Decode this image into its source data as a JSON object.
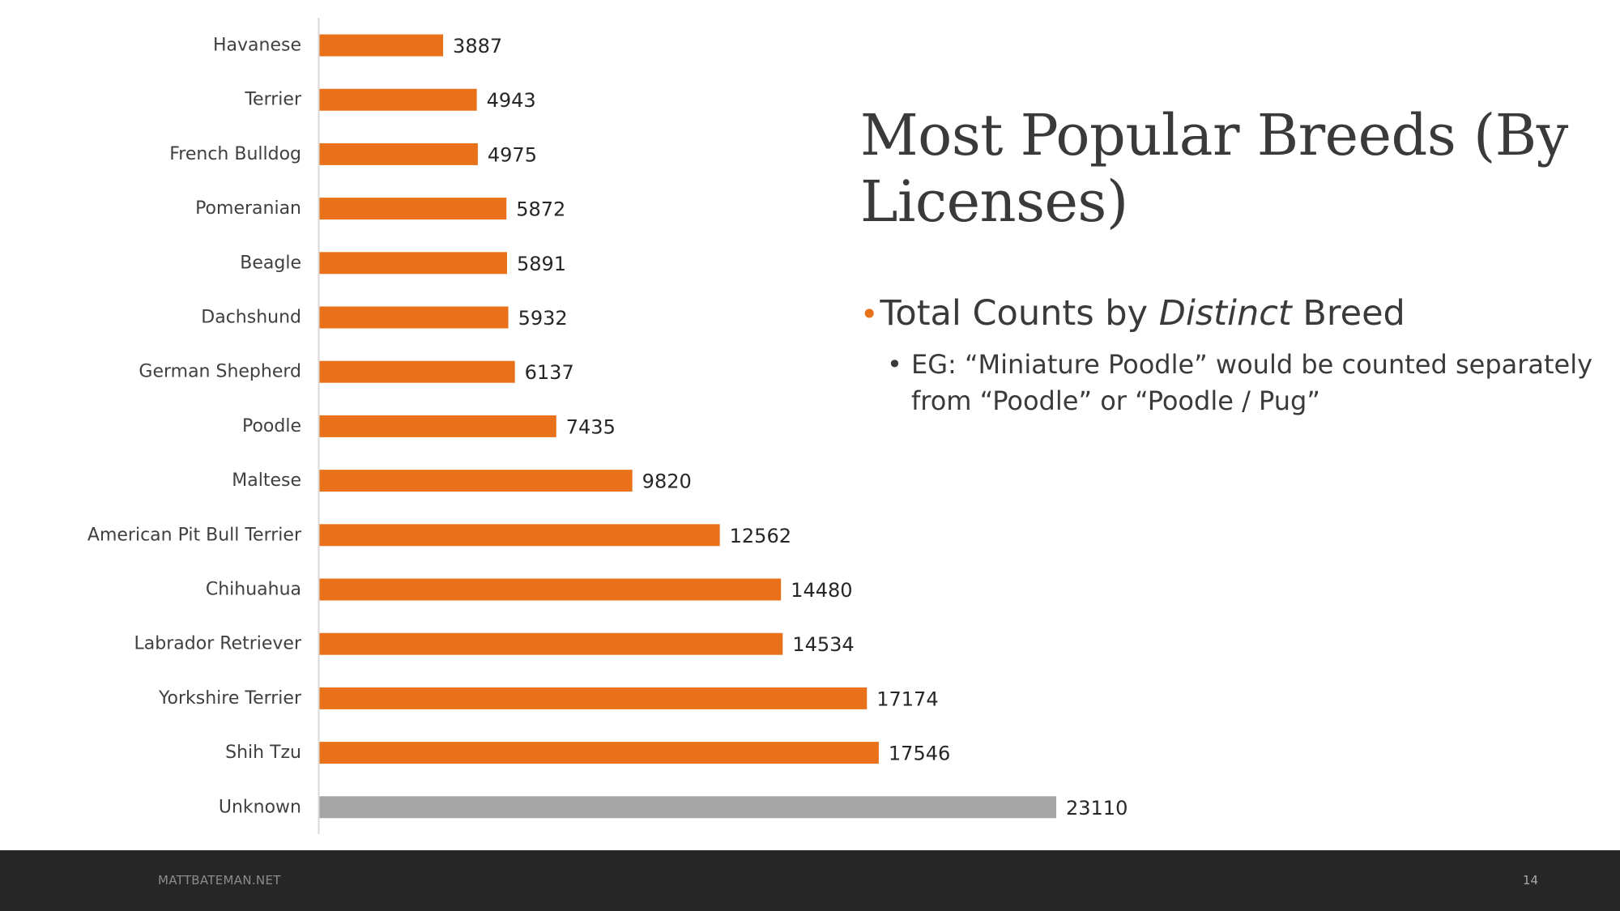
{
  "slide": {
    "title": "Most Popular Breeds (By Licenses)",
    "bullet": {
      "dot": "•",
      "text_before": "Total Counts by ",
      "text_emphasis": "Distinct",
      "text_after": " Breed"
    },
    "sub_bullet": {
      "dot": "•",
      "text": "EG: “Miniature Poodle” would be counted separately from “Poodle” or “Poodle / Pug”"
    },
    "footer": {
      "site": "MATTBATEMAN.NET",
      "page_number": "14"
    }
  },
  "chart_data": {
    "type": "bar",
    "orientation": "horizontal",
    "title": "",
    "xlabel": "",
    "ylabel": "",
    "xlim": [
      0,
      23110
    ],
    "grid": false,
    "legend": "none",
    "categories": [
      "Havanese",
      "Terrier",
      "French Bulldog",
      "Pomeranian",
      "Beagle",
      "Dachshund",
      "German Shepherd",
      "Poodle",
      "Maltese",
      "American Pit Bull Terrier",
      "Chihuahua",
      "Labrador Retriever",
      "Yorkshire Terrier",
      "Shih Tzu",
      "Unknown"
    ],
    "values": [
      3887,
      4943,
      4975,
      5872,
      5891,
      5932,
      6137,
      7435,
      9820,
      12562,
      14480,
      14534,
      17174,
      17546,
      23110
    ],
    "colors": {
      "default": "#e97119",
      "highlight": "#a6a6a6",
      "axis": "#d9d9d9"
    },
    "highlight_category": "Unknown"
  }
}
